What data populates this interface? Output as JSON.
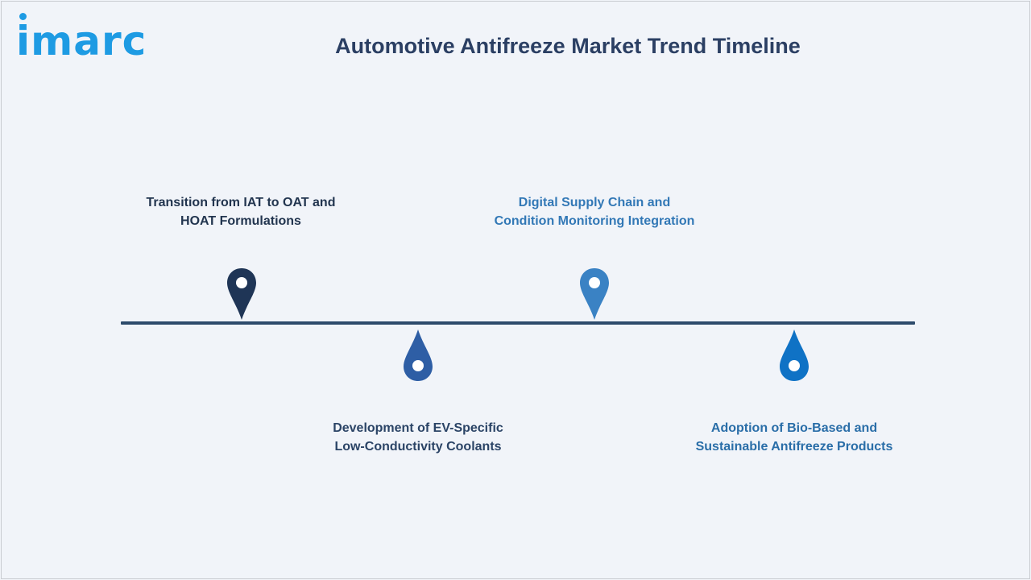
{
  "logo": {
    "text": "imarc",
    "color": "#1e9be3"
  },
  "title": "Automotive Antifreeze Market Trend Timeline",
  "timeline": {
    "line_color": "#2d4b6b",
    "items": [
      {
        "lines": [
          "Transition from IAT to OAT and",
          "HOAT Formulations"
        ],
        "position": "above",
        "color": "#1f3556",
        "text_color": "#22354f",
        "icon": "location-pin-icon"
      },
      {
        "lines": [
          "Development of EV-Specific",
          "Low-Conductivity Coolants"
        ],
        "position": "below",
        "color": "#2e5ea5",
        "text_color": "#2b4466",
        "icon": "drop-pin-icon"
      },
      {
        "lines": [
          "Digital Supply Chain and",
          "Condition Monitoring Integration"
        ],
        "position": "above",
        "color": "#3a82c4",
        "text_color": "#3278b6",
        "icon": "location-pin-icon"
      },
      {
        "lines": [
          "Adoption of Bio-Based and",
          "Sustainable Antifreeze Products"
        ],
        "position": "below",
        "color": "#0f72c5",
        "text_color": "#2a6ea8",
        "icon": "drop-pin-icon"
      }
    ]
  }
}
